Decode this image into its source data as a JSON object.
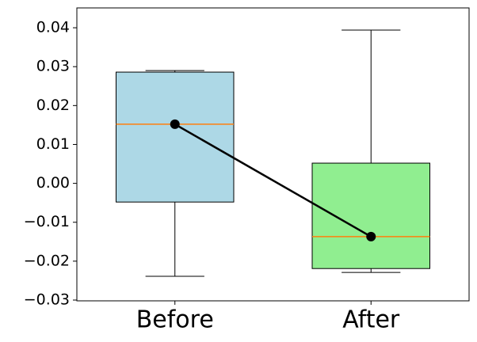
{
  "chart_data": {
    "type": "box",
    "categories": [
      "Before",
      "After"
    ],
    "boxes": [
      {
        "whislo": -0.0239,
        "q1": -0.0048,
        "med": 0.0152,
        "q3": 0.0286,
        "whishi": 0.029,
        "color": "#add8e6"
      },
      {
        "whislo": -0.0229,
        "q1": -0.0219,
        "med": -0.0137,
        "q3": 0.0052,
        "whishi": 0.0394,
        "color": "#90ee90"
      }
    ],
    "means": [
      0.0152,
      -0.0137
    ],
    "median_color": "#ff7f0e",
    "mean_color": "#000000",
    "ylim": [
      -0.0302,
      0.0451
    ],
    "yticks": [
      {
        "value": -0.03,
        "label": "−0.03"
      },
      {
        "value": -0.02,
        "label": "−0.02"
      },
      {
        "value": -0.01,
        "label": "−0.01"
      },
      {
        "value": 0.0,
        "label": "0.00"
      },
      {
        "value": 0.01,
        "label": "0.01"
      },
      {
        "value": 0.02,
        "label": "0.02"
      },
      {
        "value": 0.03,
        "label": "0.03"
      },
      {
        "value": 0.04,
        "label": "0.04"
      }
    ]
  }
}
